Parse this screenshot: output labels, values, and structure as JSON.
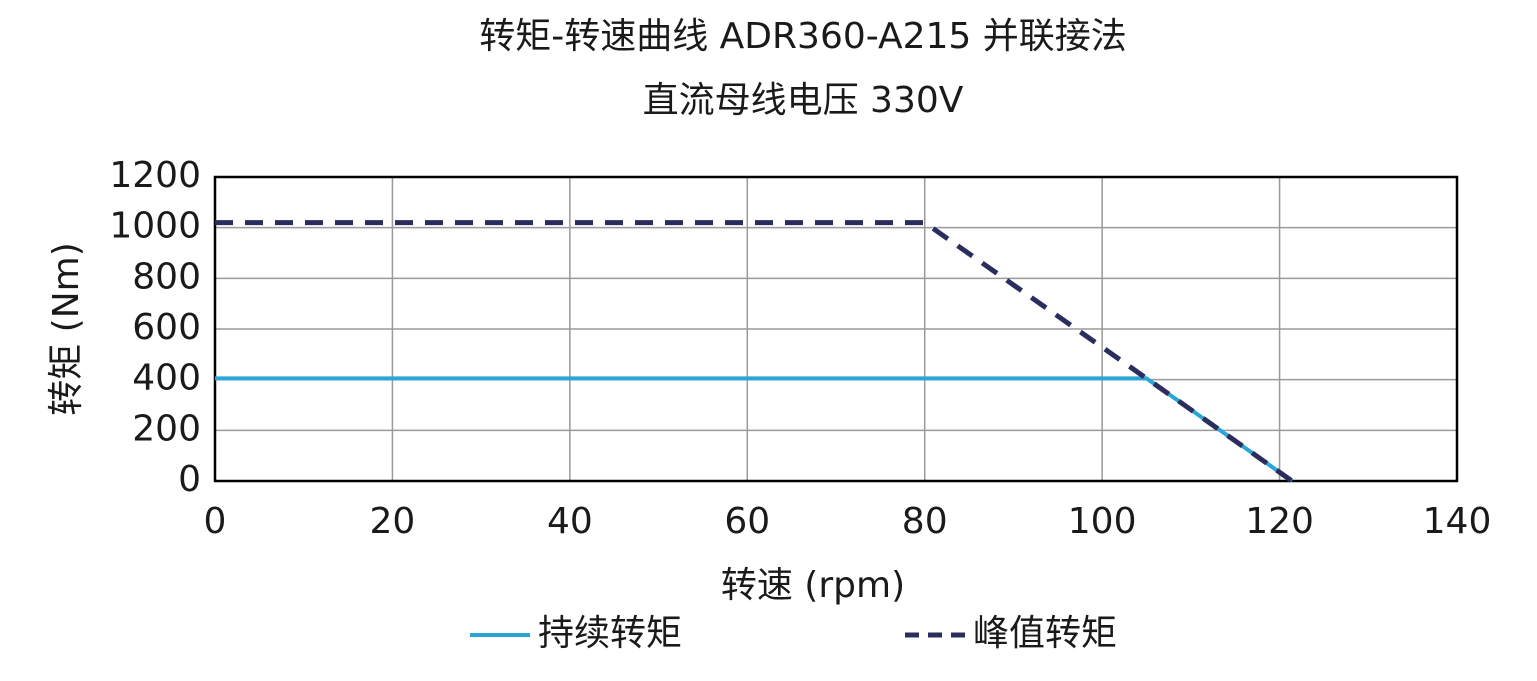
{
  "chart_data": {
    "type": "line",
    "title": "转矩-转速曲线 ADR360-A215 并联接法",
    "subtitle": "直流母线电压 330V",
    "x_label": "转速 (rpm)",
    "y_label": "转矩 (Nm)",
    "x": [
      0,
      80,
      105,
      121.4
    ],
    "series": [
      {
        "name": "持续转矩",
        "color": "#2aa6d6",
        "dash": false,
        "values": [
          405,
          405,
          405,
          0
        ]
      },
      {
        "name": "峰值转矩",
        "color": "#2b2d5e",
        "dash": true,
        "values": [
          1020,
          1020,
          405,
          0
        ]
      }
    ],
    "xlim": [
      0,
      140
    ],
    "xticks": [
      0,
      20,
      40,
      60,
      80,
      100,
      120,
      140
    ],
    "ylim": [
      0,
      1200
    ],
    "yticks": [
      0,
      200,
      400,
      600,
      800,
      1000,
      1200
    ],
    "grid": true,
    "legend": "bottom"
  }
}
